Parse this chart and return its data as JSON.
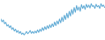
{
  "values": [
    -1.5,
    -3.0,
    -2.0,
    -4.0,
    -3.2,
    -5.2,
    -4.5,
    -6.0,
    -5.0,
    -7.0,
    -6.0,
    -7.8,
    -6.8,
    -8.5,
    -7.5,
    -9.0,
    -8.0,
    -9.5,
    -8.8,
    -9.8,
    -9.0,
    -8.0,
    -9.2,
    -8.5,
    -7.5,
    -9.0,
    -8.0,
    -9.0,
    -7.8,
    -8.8,
    -7.2,
    -8.5,
    -6.8,
    -8.0,
    -6.0,
    -7.5,
    -5.5,
    -7.0,
    -5.0,
    -6.5,
    -4.5,
    -6.0,
    -4.0,
    -5.5,
    -3.0,
    -5.0,
    -2.5,
    -4.2,
    -1.5,
    -3.5,
    -0.5,
    -2.8,
    0.5,
    -1.8,
    1.5,
    -1.0,
    2.5,
    0.0,
    3.5,
    1.0,
    4.5,
    2.0,
    5.5,
    3.0,
    4.8,
    2.5,
    6.0,
    4.0,
    5.5,
    3.5,
    6.2,
    4.5,
    5.8,
    4.2,
    6.5,
    5.0,
    5.5,
    4.0,
    6.2,
    4.8,
    5.5,
    4.0,
    6.5,
    5.0,
    5.8,
    4.5
  ],
  "line_color": "#5ba8d4",
  "background_color": "#ffffff",
  "ylim_min": -12,
  "ylim_max": 8
}
